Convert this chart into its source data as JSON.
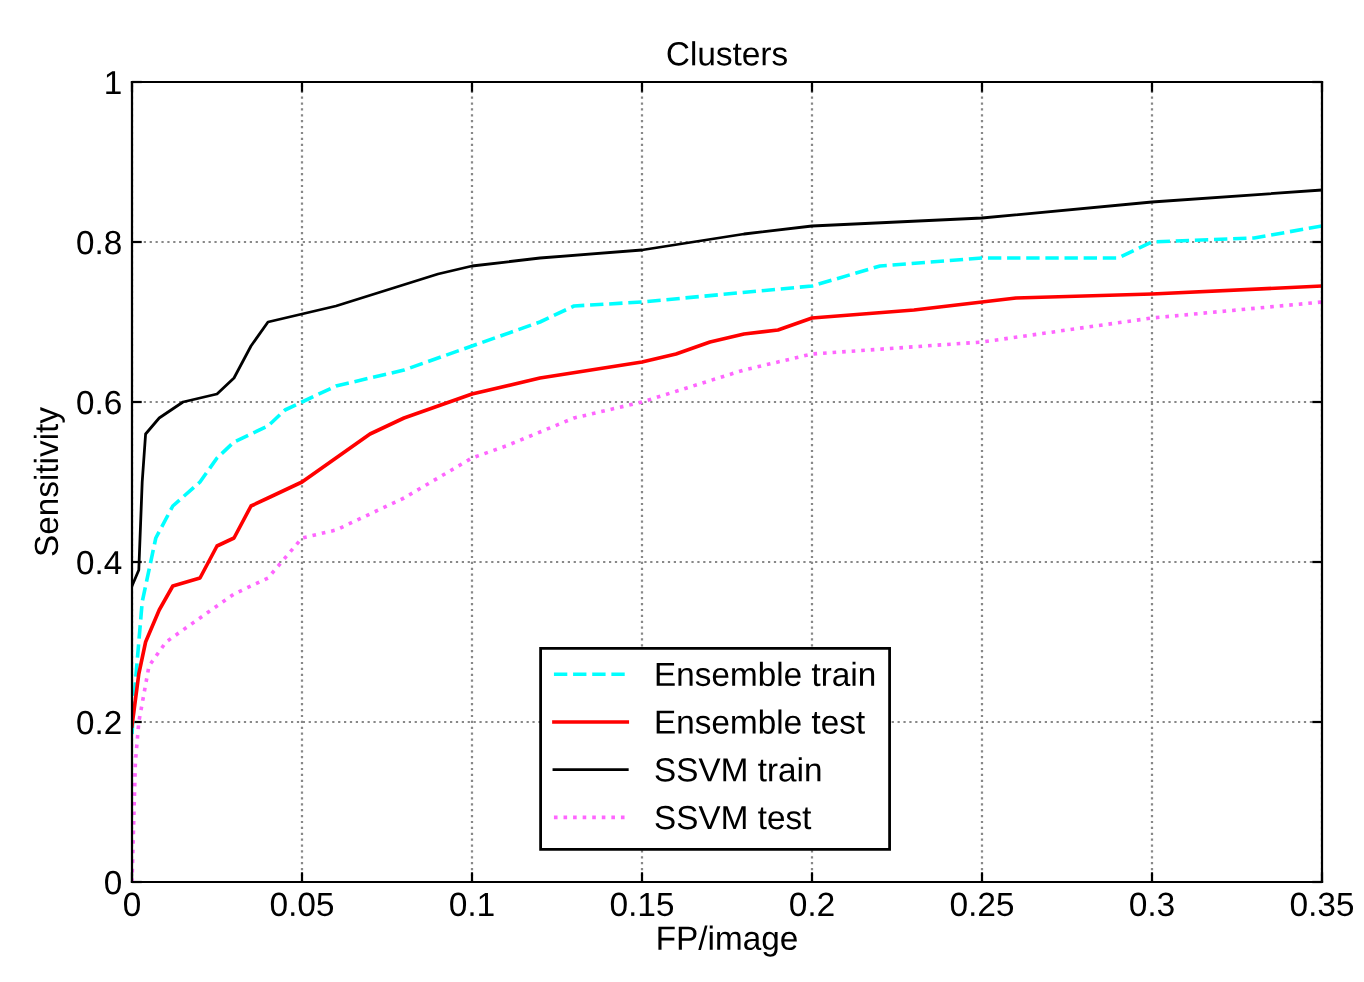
{
  "chart_data": {
    "type": "line",
    "title": "Clusters",
    "xlabel": "FP/image",
    "ylabel": "Sensitivity",
    "xlim": [
      0,
      0.35
    ],
    "ylim": [
      0,
      1
    ],
    "xticks": [
      0,
      0.05,
      0.1,
      0.15,
      0.2,
      0.25,
      0.3,
      0.35
    ],
    "yticks": [
      0,
      0.2,
      0.4,
      0.6,
      0.8,
      1
    ],
    "grid": true,
    "legend": "bottom",
    "series": [
      {
        "name": "Ensemble train",
        "color": "#00ffff",
        "line_style": "dashed",
        "x": [
          0,
          0.001,
          0.003,
          0.007,
          0.012,
          0.02,
          0.025,
          0.03,
          0.04,
          0.045,
          0.05,
          0.06,
          0.08,
          0.1,
          0.12,
          0.13,
          0.15,
          0.2,
          0.22,
          0.25,
          0.29,
          0.3,
          0.33,
          0.35
        ],
        "values": [
          0.185,
          0.25,
          0.35,
          0.43,
          0.47,
          0.5,
          0.53,
          0.55,
          0.57,
          0.59,
          0.6,
          0.62,
          0.64,
          0.67,
          0.7,
          0.72,
          0.725,
          0.745,
          0.77,
          0.78,
          0.78,
          0.8,
          0.805,
          0.82
        ]
      },
      {
        "name": "Ensemble test",
        "color": "#ff0000",
        "line_style": "solid",
        "x": [
          0,
          0.002,
          0.004,
          0.008,
          0.012,
          0.02,
          0.025,
          0.03,
          0.035,
          0.04,
          0.05,
          0.06,
          0.07,
          0.08,
          0.1,
          0.12,
          0.15,
          0.16,
          0.17,
          0.18,
          0.19,
          0.2,
          0.23,
          0.26,
          0.3,
          0.35
        ],
        "values": [
          0.195,
          0.26,
          0.3,
          0.34,
          0.37,
          0.38,
          0.42,
          0.43,
          0.47,
          0.48,
          0.5,
          0.53,
          0.56,
          0.58,
          0.61,
          0.63,
          0.65,
          0.66,
          0.675,
          0.685,
          0.69,
          0.705,
          0.715,
          0.73,
          0.735,
          0.745
        ]
      },
      {
        "name": "SSVM train",
        "color": "#000000",
        "line_style": "solid",
        "x": [
          0,
          0.002,
          0.003,
          0.004,
          0.008,
          0.015,
          0.025,
          0.03,
          0.035,
          0.04,
          0.05,
          0.06,
          0.075,
          0.09,
          0.1,
          0.12,
          0.15,
          0.18,
          0.2,
          0.25,
          0.3,
          0.35
        ],
        "values": [
          0.37,
          0.39,
          0.5,
          0.56,
          0.58,
          0.6,
          0.61,
          0.63,
          0.67,
          0.7,
          0.71,
          0.72,
          0.74,
          0.76,
          0.77,
          0.78,
          0.79,
          0.81,
          0.82,
          0.83,
          0.85,
          0.865
        ]
      },
      {
        "name": "SSVM test",
        "color": "#ff66ff",
        "line_style": "dotted",
        "x": [
          0,
          0.001,
          0.002,
          0.005,
          0.01,
          0.02,
          0.03,
          0.04,
          0.05,
          0.06,
          0.08,
          0.1,
          0.11,
          0.13,
          0.15,
          0.18,
          0.2,
          0.25,
          0.3,
          0.35
        ],
        "values": [
          0,
          0.15,
          0.2,
          0.27,
          0.3,
          0.33,
          0.36,
          0.38,
          0.43,
          0.44,
          0.48,
          0.53,
          0.545,
          0.58,
          0.6,
          0.64,
          0.66,
          0.675,
          0.705,
          0.725
        ]
      }
    ]
  }
}
